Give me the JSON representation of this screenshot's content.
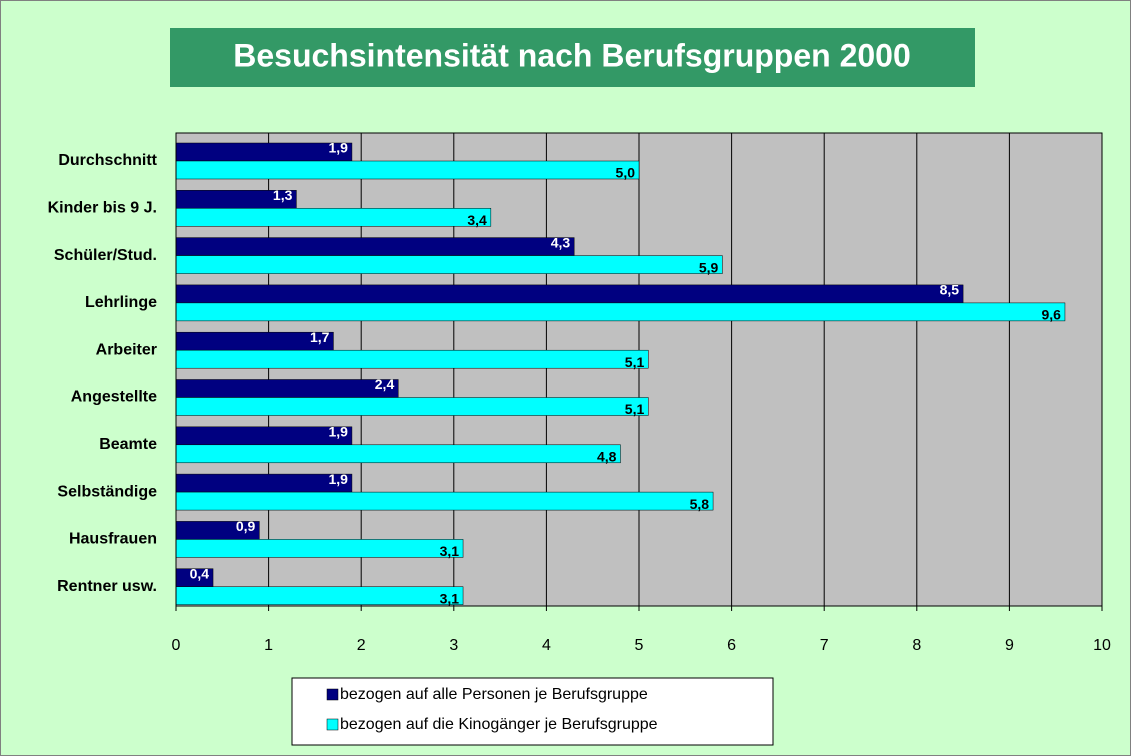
{
  "chart_data": {
    "type": "barh",
    "title": "Besuchsintensität nach Berufsgruppen 2000",
    "categories": [
      "Durchschnitt",
      "Kinder bis 9 J.",
      "Schüler/Stud.",
      "Lehrlinge",
      "Arbeiter",
      "Angestellte",
      "Beamte",
      "Selbständige",
      "Hausfrauen",
      "Rentner usw."
    ],
    "series": [
      {
        "name": "bezogen auf alle Personen je Berufsgruppe",
        "color": "#000080",
        "values": [
          1.9,
          1.3,
          4.3,
          8.5,
          1.7,
          2.4,
          1.9,
          1.9,
          0.9,
          0.4
        ],
        "value_labels": [
          "1,9",
          "1,3",
          "4,3",
          "8,5",
          "1,7",
          "2,4",
          "1,9",
          "1,9",
          "0,9",
          "0,4"
        ]
      },
      {
        "name": "bezogen auf die Kinogänger je Berufsgruppe",
        "color": "#00ffff",
        "values": [
          5.0,
          3.4,
          5.9,
          9.6,
          5.1,
          5.1,
          4.8,
          5.8,
          3.1,
          3.1
        ],
        "value_labels": [
          "5,0",
          "3,4",
          "5,9",
          "9,6",
          "5,1",
          "5,1",
          "4,8",
          "5,8",
          "3,1",
          "3,1"
        ]
      }
    ],
    "xlim": [
      0,
      10
    ],
    "xticks": [
      0,
      1,
      2,
      3,
      4,
      5,
      6,
      7,
      8,
      9,
      10
    ],
    "grid": true,
    "legend": "bottom"
  }
}
